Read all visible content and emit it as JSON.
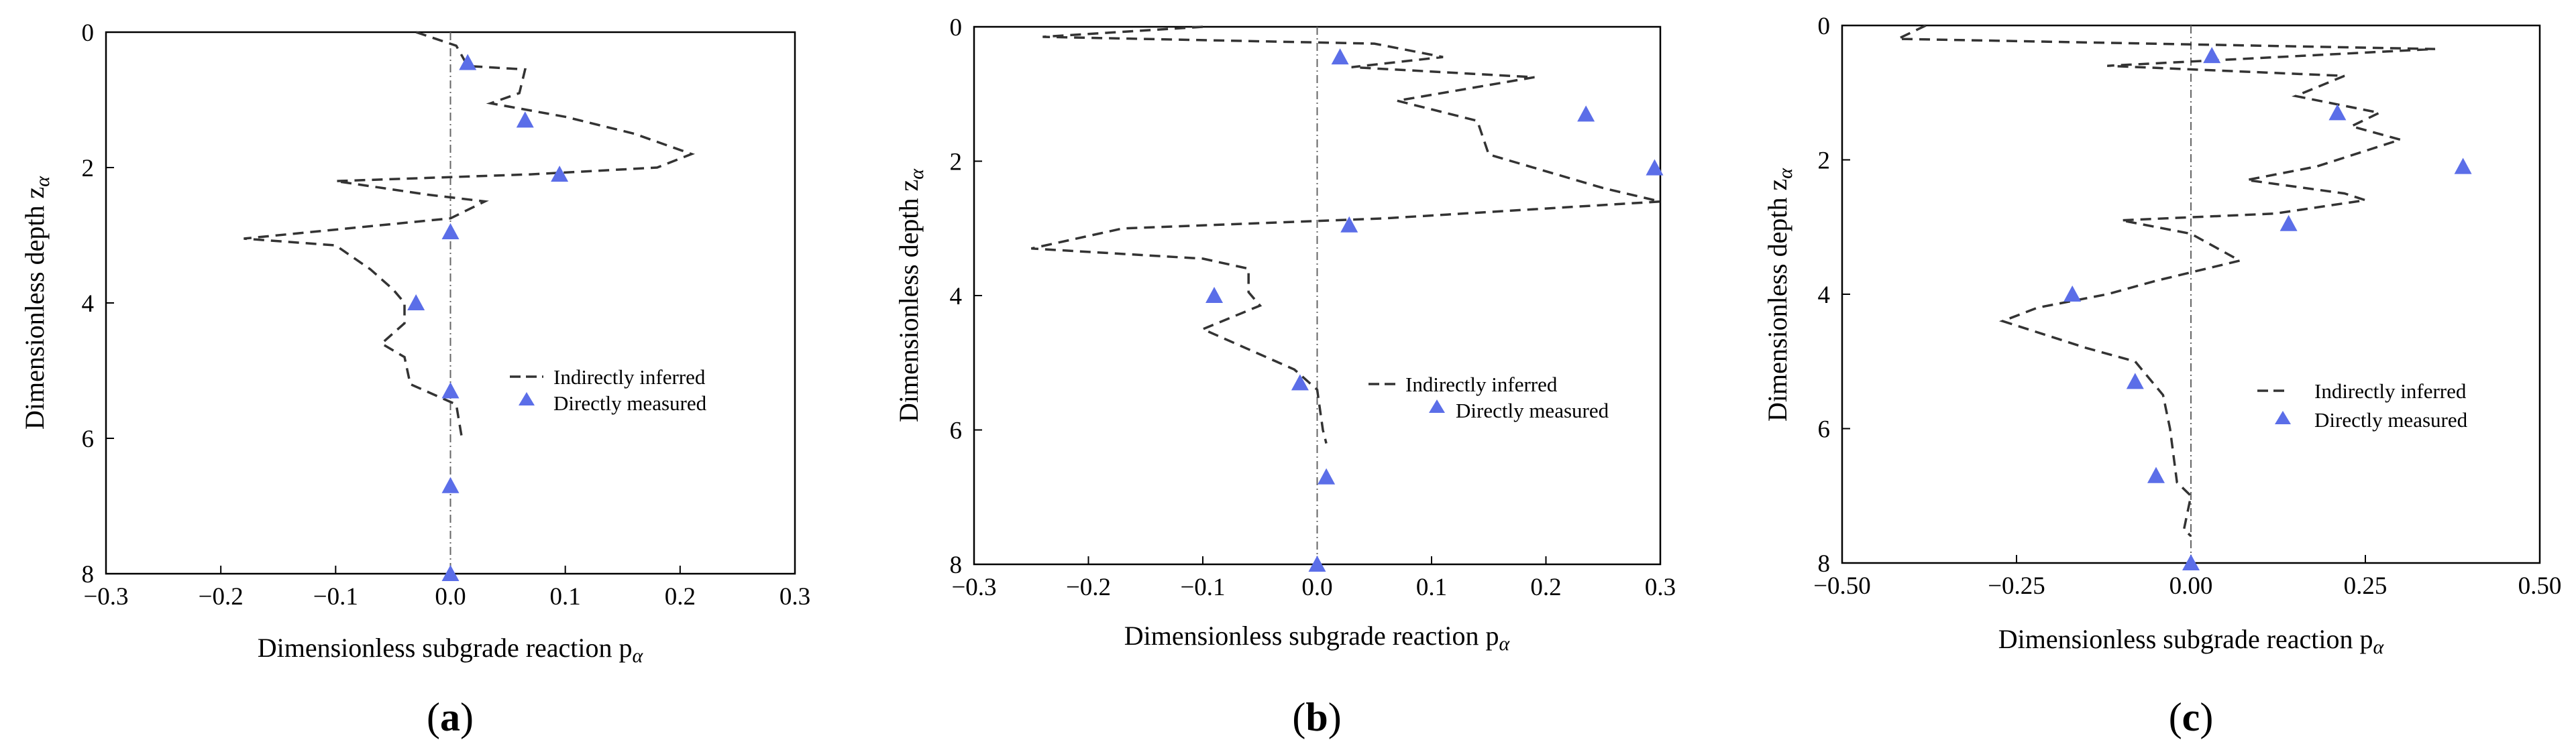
{
  "figure": {
    "description_labels": [
      "(a)",
      "(b)",
      "(c)"
    ]
  },
  "colors": {
    "inferred_line": "#333333",
    "measured_marker": "#5b6ee8",
    "zero_line": "#666666"
  },
  "chart_data": [
    {
      "type": "line",
      "panel": "a",
      "panel_label_open": "(",
      "panel_label_letter": "a",
      "panel_label_close": ")",
      "xlabel": "Dimensionless subgrade reaction p",
      "xlabel_sub": "α",
      "ylabel": "Dimensionless depth z",
      "ylabel_sub": "α",
      "xlim": [
        -0.3,
        0.3
      ],
      "ylim": [
        0,
        8
      ],
      "y_inverted": true,
      "x_ticks": [
        -0.3,
        -0.2,
        -0.1,
        0.0,
        0.1,
        0.2,
        0.3
      ],
      "x_tick_labels": [
        "−0.3",
        "−0.2",
        "−0.1",
        "0.0",
        "0.1",
        "0.2",
        "0.3"
      ],
      "y_ticks": [
        0,
        2,
        4,
        6,
        8
      ],
      "y_tick_labels": [
        "0",
        "2",
        "4",
        "6",
        "8"
      ],
      "legend": {
        "position": "right-middle",
        "entries": [
          "Indirectly inferred",
          "Directly measured"
        ]
      },
      "series": [
        {
          "name": "Indirectly inferred",
          "style": "dashed",
          "points": [
            [
              -0.03,
              0.0
            ],
            [
              0.005,
              0.2
            ],
            [
              0.015,
              0.5
            ],
            [
              0.065,
              0.55
            ],
            [
              0.06,
              0.9
            ],
            [
              0.035,
              1.05
            ],
            [
              0.1,
              1.25
            ],
            [
              0.16,
              1.5
            ],
            [
              0.21,
              1.8
            ],
            [
              0.18,
              2.0
            ],
            [
              0.07,
              2.1
            ],
            [
              -0.1,
              2.2
            ],
            [
              -0.02,
              2.4
            ],
            [
              0.03,
              2.5
            ],
            [
              0.0,
              2.75
            ],
            [
              -0.09,
              2.9
            ],
            [
              -0.18,
              3.05
            ],
            [
              -0.1,
              3.15
            ],
            [
              -0.07,
              3.5
            ],
            [
              -0.05,
              3.8
            ],
            [
              -0.04,
              4.0
            ],
            [
              -0.04,
              4.3
            ],
            [
              -0.06,
              4.6
            ],
            [
              -0.04,
              4.8
            ],
            [
              -0.035,
              5.2
            ],
            [
              0.005,
              5.5
            ],
            [
              0.01,
              6.0
            ]
          ]
        },
        {
          "name": "Directly measured",
          "style": "triangle",
          "points": [
            [
              0.015,
              0.45
            ],
            [
              0.065,
              1.3
            ],
            [
              0.095,
              2.1
            ],
            [
              0.0,
              2.95
            ],
            [
              -0.03,
              4.0
            ],
            [
              0.0,
              5.3
            ],
            [
              0.0,
              6.7
            ],
            [
              0.0,
              8.0
            ]
          ]
        }
      ]
    },
    {
      "type": "line",
      "panel": "b",
      "panel_label_open": "(",
      "panel_label_letter": "b",
      "panel_label_close": ")",
      "xlabel": "Dimensionless subgrade reaction p",
      "xlabel_sub": "α",
      "ylabel": "Dimensionless depth z",
      "ylabel_sub": "α",
      "xlim": [
        -0.3,
        0.3
      ],
      "ylim": [
        0,
        8
      ],
      "y_inverted": true,
      "x_ticks": [
        -0.3,
        -0.2,
        -0.1,
        0.0,
        0.1,
        0.2,
        0.3
      ],
      "x_tick_labels": [
        "−0.3",
        "−0.2",
        "−0.1",
        "0.0",
        "0.1",
        "0.2",
        "0.3"
      ],
      "y_ticks": [
        0,
        2,
        4,
        6,
        8
      ],
      "y_tick_labels": [
        "0",
        "2",
        "4",
        "6",
        "8"
      ],
      "legend": {
        "position": "right-middle",
        "entries": [
          "Indirectly inferred",
          "Directly measured"
        ]
      },
      "series": [
        {
          "name": "Indirectly inferred",
          "style": "dashed",
          "points": [
            [
              -0.1,
              0.0
            ],
            [
              -0.24,
              0.15
            ],
            [
              0.05,
              0.25
            ],
            [
              0.11,
              0.45
            ],
            [
              0.03,
              0.6
            ],
            [
              0.19,
              0.75
            ],
            [
              0.07,
              1.1
            ],
            [
              0.14,
              1.4
            ],
            [
              0.15,
              1.9
            ],
            [
              0.25,
              2.4
            ],
            [
              0.3,
              2.6
            ],
            [
              0.06,
              2.85
            ],
            [
              -0.17,
              3.0
            ],
            [
              -0.25,
              3.3
            ],
            [
              -0.1,
              3.45
            ],
            [
              -0.06,
              3.6
            ],
            [
              -0.06,
              3.95
            ],
            [
              -0.05,
              4.15
            ],
            [
              -0.1,
              4.5
            ],
            [
              -0.06,
              4.8
            ],
            [
              -0.02,
              5.1
            ],
            [
              0.0,
              5.4
            ],
            [
              0.005,
              6.0
            ],
            [
              0.008,
              6.2
            ]
          ]
        },
        {
          "name": "Directly measured",
          "style": "triangle",
          "points": [
            [
              0.02,
              0.45
            ],
            [
              0.235,
              1.3
            ],
            [
              0.295,
              2.1
            ],
            [
              0.028,
              2.95
            ],
            [
              -0.09,
              4.0
            ],
            [
              -0.015,
              5.3
            ],
            [
              0.008,
              6.7
            ],
            [
              0.0,
              8.0
            ]
          ]
        }
      ]
    },
    {
      "type": "line",
      "panel": "c",
      "panel_label_open": "(",
      "panel_label_letter": "c",
      "panel_label_close": ")",
      "xlabel": "Dimensionless subgrade reaction p",
      "xlabel_sub": "α",
      "ylabel": "Dimensionless depth z",
      "ylabel_sub": "α",
      "xlim": [
        -0.5,
        0.5
      ],
      "ylim": [
        0,
        8
      ],
      "y_inverted": true,
      "x_ticks": [
        -0.5,
        -0.25,
        0.0,
        0.25,
        0.5
      ],
      "x_tick_labels": [
        "−0.50",
        "−0.25",
        "0.00",
        "0.25",
        "0.50"
      ],
      "y_ticks": [
        0,
        2,
        4,
        6,
        8
      ],
      "y_tick_labels": [
        "0",
        "2",
        "4",
        "6",
        "8"
      ],
      "legend": {
        "position": "right-middle",
        "entries": [
          "Indirectly inferred",
          "Directly measured"
        ]
      },
      "series": [
        {
          "name": "Indirectly inferred",
          "style": "dashed",
          "points": [
            [
              -0.38,
              0.0
            ],
            [
              -0.42,
              0.2
            ],
            [
              0.35,
              0.35
            ],
            [
              -0.12,
              0.6
            ],
            [
              0.22,
              0.75
            ],
            [
              0.15,
              1.05
            ],
            [
              0.27,
              1.3
            ],
            [
              0.23,
              1.5
            ],
            [
              0.3,
              1.7
            ],
            [
              0.18,
              2.1
            ],
            [
              0.08,
              2.3
            ],
            [
              0.22,
              2.5
            ],
            [
              0.25,
              2.6
            ],
            [
              0.12,
              2.8
            ],
            [
              -0.1,
              2.9
            ],
            [
              0.0,
              3.1
            ],
            [
              0.07,
              3.5
            ],
            [
              -0.05,
              3.8
            ],
            [
              -0.12,
              4.0
            ],
            [
              -0.22,
              4.2
            ],
            [
              -0.27,
              4.4
            ],
            [
              -0.15,
              4.8
            ],
            [
              -0.08,
              5.0
            ],
            [
              -0.04,
              5.5
            ],
            [
              -0.03,
              6.0
            ],
            [
              -0.02,
              6.8
            ],
            [
              0.0,
              7.0
            ],
            [
              -0.01,
              7.5
            ],
            [
              0.0,
              7.6
            ]
          ]
        },
        {
          "name": "Directly measured",
          "style": "triangle",
          "points": [
            [
              0.03,
              0.45
            ],
            [
              0.21,
              1.3
            ],
            [
              0.39,
              2.1
            ],
            [
              0.14,
              2.95
            ],
            [
              -0.17,
              4.0
            ],
            [
              -0.08,
              5.3
            ],
            [
              -0.05,
              6.7
            ],
            [
              0.0,
              8.0
            ]
          ]
        }
      ]
    }
  ]
}
